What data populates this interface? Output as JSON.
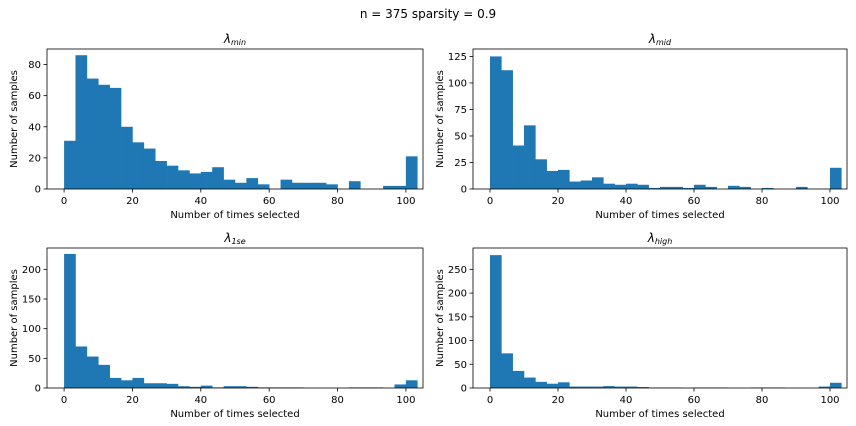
{
  "figure": {
    "suptitle": "n = 375 sparsity = 0.9"
  },
  "colors": {
    "bar": "#1f77b4",
    "axis": "#000000",
    "background": "#ffffff"
  },
  "chart_data": [
    {
      "type": "bar",
      "title_base": "λ",
      "title_sub": "min",
      "xlabel": "Number of times selected",
      "ylabel": "Number of samples",
      "xlim": [
        -5,
        105
      ],
      "ylim": [
        0,
        90
      ],
      "xticks": [
        0,
        20,
        40,
        60,
        80,
        100
      ],
      "yticks": [
        0,
        20,
        40,
        60,
        80
      ],
      "bin_start": 0,
      "bin_width": 3.333,
      "values": [
        31,
        86,
        71,
        67,
        65,
        40,
        30,
        26,
        18,
        15,
        12,
        10,
        11,
        14,
        6,
        4,
        7,
        3,
        0,
        6,
        4,
        4,
        4,
        3,
        0,
        5,
        0,
        0,
        2,
        2,
        21
      ]
    },
    {
      "type": "bar",
      "title_base": "λ",
      "title_sub": "mid",
      "xlabel": "Number of times selected",
      "ylabel": "Number of samples",
      "xlim": [
        -5,
        105
      ],
      "ylim": [
        0,
        132
      ],
      "xticks": [
        0,
        20,
        40,
        60,
        80,
        100
      ],
      "yticks": [
        0,
        25,
        50,
        75,
        100,
        125
      ],
      "bin_start": 0,
      "bin_width": 3.333,
      "values": [
        125,
        112,
        41,
        60,
        28,
        17,
        18,
        7,
        8,
        11,
        5,
        4,
        5,
        4,
        1,
        2,
        2,
        1,
        4,
        2,
        0,
        3,
        2,
        0,
        1,
        0,
        0,
        2,
        0,
        0,
        20
      ]
    },
    {
      "type": "bar",
      "title_base": "λ",
      "title_sub": "1se",
      "xlabel": "Number of times selected",
      "ylabel": "Number of samples",
      "xlim": [
        -5,
        105
      ],
      "ylim": [
        0,
        236
      ],
      "xticks": [
        0,
        20,
        40,
        60,
        80,
        100
      ],
      "yticks": [
        0,
        50,
        100,
        150,
        200
      ],
      "bin_start": 0,
      "bin_width": 3.333,
      "values": [
        226,
        70,
        53,
        39,
        17,
        13,
        17,
        8,
        8,
        7,
        3,
        2,
        4,
        1,
        3,
        3,
        2,
        1,
        1,
        1,
        1,
        0,
        0,
        0,
        0,
        1,
        1,
        1,
        0,
        6,
        13
      ]
    },
    {
      "type": "bar",
      "title_base": "λ",
      "title_sub": "high",
      "xlabel": "Number of times selected",
      "ylabel": "Number of samples",
      "xlim": [
        -5,
        105
      ],
      "ylim": [
        0,
        295
      ],
      "xticks": [
        0,
        20,
        40,
        60,
        80,
        100
      ],
      "yticks": [
        0,
        50,
        100,
        150,
        200,
        250
      ],
      "bin_start": 0,
      "bin_width": 3.333,
      "values": [
        280,
        73,
        36,
        22,
        13,
        9,
        12,
        3,
        3,
        3,
        4,
        3,
        3,
        2,
        1,
        1,
        1,
        0,
        1,
        1,
        1,
        0,
        0,
        1,
        1,
        1,
        0,
        0,
        0,
        3,
        11
      ]
    }
  ]
}
